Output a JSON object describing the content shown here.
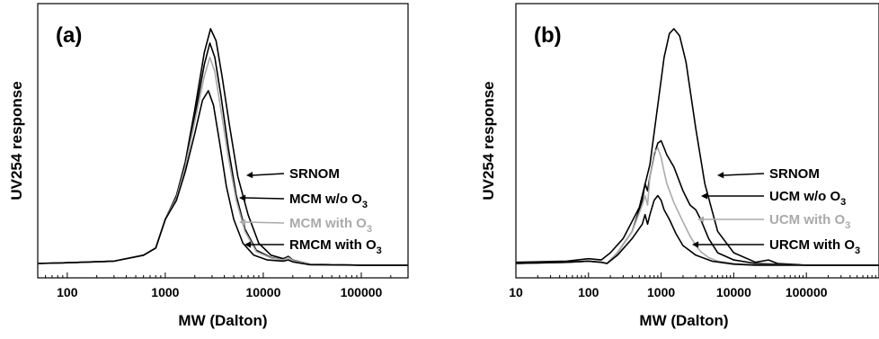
{
  "chart_data": [
    {
      "type": "line",
      "panel_label": "(a)",
      "xlabel": "MW (Dalton)",
      "ylabel": "UV254 response",
      "xscale": "log",
      "xlim": [
        50,
        300000
      ],
      "ylim": [
        0,
        1.05
      ],
      "yticks": "none",
      "xticks": [
        {
          "value": 100,
          "label": "100"
        },
        {
          "value": 1000,
          "label": "1000"
        },
        {
          "value": 10000,
          "label": "10000"
        },
        {
          "value": 100000,
          "label": "100000"
        }
      ],
      "series": [
        {
          "name": "SRNOM",
          "color": "#000000",
          "x": [
            50,
            100,
            300,
            600,
            800,
            1000,
            1300,
            1600,
            2000,
            2500,
            2900,
            3300,
            3800,
            4500,
            5500,
            7000,
            9000,
            12000,
            16000,
            18000,
            20000,
            30000,
            100000,
            300000
          ],
          "y": [
            0.015,
            0.018,
            0.025,
            0.05,
            0.08,
            0.2,
            0.3,
            0.44,
            0.66,
            0.9,
            1.0,
            0.95,
            0.8,
            0.6,
            0.38,
            0.22,
            0.1,
            0.05,
            0.035,
            0.045,
            0.03,
            0.012,
            0.008,
            0.008
          ]
        },
        {
          "name": "MCM w/o O3",
          "color": "#000000",
          "x": [
            50,
            100,
            300,
            600,
            800,
            1000,
            1300,
            1600,
            2000,
            2500,
            2850,
            3200,
            3700,
            4400,
            5300,
            6500,
            8500,
            12000,
            16000,
            18000,
            20000,
            30000,
            100000,
            300000
          ],
          "y": [
            0.015,
            0.018,
            0.025,
            0.05,
            0.08,
            0.2,
            0.29,
            0.43,
            0.63,
            0.85,
            0.94,
            0.88,
            0.72,
            0.5,
            0.3,
            0.16,
            0.07,
            0.04,
            0.03,
            0.04,
            0.028,
            0.012,
            0.008,
            0.008
          ]
        },
        {
          "name": "MCM with O3",
          "color": "#aaaaaa",
          "x": [
            50,
            100,
            300,
            600,
            800,
            1000,
            1300,
            1600,
            2000,
            2500,
            2850,
            3200,
            3700,
            4400,
            5300,
            6500,
            8500,
            12000,
            16000,
            18000,
            20000,
            30000,
            100000,
            300000
          ],
          "y": [
            0.015,
            0.018,
            0.025,
            0.05,
            0.08,
            0.2,
            0.29,
            0.42,
            0.61,
            0.8,
            0.88,
            0.82,
            0.66,
            0.46,
            0.28,
            0.15,
            0.065,
            0.038,
            0.03,
            0.04,
            0.028,
            0.012,
            0.008,
            0.008
          ]
        },
        {
          "name": "RMCM with O3",
          "color": "#000000",
          "x": [
            50,
            100,
            300,
            600,
            800,
            1000,
            1300,
            1600,
            2000,
            2400,
            2750,
            3100,
            3600,
            4200,
            5000,
            6200,
            8000,
            11000,
            16000,
            18000,
            20000,
            30000,
            100000,
            300000
          ],
          "y": [
            0.015,
            0.018,
            0.025,
            0.05,
            0.08,
            0.2,
            0.28,
            0.4,
            0.56,
            0.7,
            0.74,
            0.68,
            0.52,
            0.34,
            0.2,
            0.1,
            0.05,
            0.03,
            0.025,
            0.03,
            0.022,
            0.01,
            0.008,
            0.008
          ]
        }
      ],
      "annotations": [
        {
          "text": "SRNOM",
          "subscript": "",
          "color": "#000000"
        },
        {
          "text": "MCM w/o O",
          "subscript": "3",
          "color": "#000000"
        },
        {
          "text": "MCM with O",
          "subscript": "3",
          "color": "#aaaaaa"
        },
        {
          "text": "RMCM with O",
          "subscript": "3",
          "color": "#000000"
        }
      ]
    },
    {
      "type": "line",
      "panel_label": "(b)",
      "xlabel": "MW (Dalton)",
      "ylabel": "UV254 response",
      "xscale": "log",
      "xlim": [
        10,
        1000000
      ],
      "ylim": [
        0,
        1.05
      ],
      "yticks": "none",
      "xticks": [
        {
          "value": 10,
          "label": "10"
        },
        {
          "value": 100,
          "label": "100"
        },
        {
          "value": 1000,
          "label": "1000"
        },
        {
          "value": 10000,
          "label": "10000"
        },
        {
          "value": 100000,
          "label": "100000"
        }
      ],
      "series": [
        {
          "name": "SRNOM",
          "color": "#000000",
          "x": [
            10,
            50,
            100,
            150,
            200,
            300,
            500,
            700,
            900,
            1100,
            1300,
            1500,
            1800,
            2200,
            3000,
            4000,
            6000,
            10000,
            20000,
            30000,
            40000,
            100000,
            1000000
          ],
          "y": [
            0.02,
            0.025,
            0.035,
            0.03,
            0.06,
            0.12,
            0.25,
            0.43,
            0.68,
            0.88,
            0.98,
            1.0,
            0.97,
            0.86,
            0.58,
            0.35,
            0.15,
            0.06,
            0.02,
            0.03,
            0.015,
            0.008,
            0.008
          ]
        },
        {
          "name": "UCM w/o O3",
          "color": "#000000",
          "x": [
            10,
            50,
            100,
            150,
            180,
            250,
            400,
            550,
            600,
            650,
            700,
            800,
            900,
            1000,
            1100,
            1200,
            1500,
            2000,
            2500,
            3000,
            3500,
            4500,
            6000,
            10000,
            20000,
            100000,
            1000000
          ],
          "y": [
            0.015,
            0.02,
            0.025,
            0.02,
            0.015,
            0.06,
            0.15,
            0.28,
            0.35,
            0.32,
            0.38,
            0.47,
            0.52,
            0.53,
            0.5,
            0.47,
            0.42,
            0.32,
            0.26,
            0.24,
            0.2,
            0.12,
            0.06,
            0.03,
            0.015,
            0.008,
            0.008
          ]
        },
        {
          "name": "UCM with O3",
          "color": "#aaaaaa",
          "x": [
            10,
            50,
            100,
            150,
            180,
            250,
            400,
            550,
            600,
            650,
            700,
            800,
            900,
            1000,
            1100,
            1200,
            1500,
            2000,
            2500,
            3000,
            3500,
            4500,
            6000,
            10000,
            20000,
            100000,
            1000000
          ],
          "y": [
            0.015,
            0.02,
            0.025,
            0.02,
            0.015,
            0.06,
            0.15,
            0.26,
            0.3,
            0.26,
            0.38,
            0.48,
            0.5,
            0.46,
            0.4,
            0.35,
            0.27,
            0.19,
            0.13,
            0.09,
            0.065,
            0.04,
            0.025,
            0.015,
            0.01,
            0.008,
            0.008
          ]
        },
        {
          "name": "URCM with O3",
          "color": "#000000",
          "x": [
            10,
            50,
            100,
            150,
            180,
            250,
            400,
            550,
            600,
            650,
            700,
            800,
            900,
            1000,
            1100,
            1300,
            1600,
            2000,
            3000,
            5000,
            10000,
            20000,
            100000,
            1000000
          ],
          "y": [
            0.015,
            0.02,
            0.025,
            0.02,
            0.015,
            0.05,
            0.12,
            0.18,
            0.22,
            0.18,
            0.22,
            0.28,
            0.3,
            0.28,
            0.24,
            0.2,
            0.14,
            0.09,
            0.05,
            0.025,
            0.012,
            0.008,
            0.008,
            0.008
          ]
        }
      ],
      "annotations": [
        {
          "text": "SRNOM",
          "subscript": "",
          "color": "#000000"
        },
        {
          "text": "UCM w/o O",
          "subscript": "3",
          "color": "#000000"
        },
        {
          "text": "UCM with O",
          "subscript": "3",
          "color": "#aaaaaa"
        },
        {
          "text": "URCM with O",
          "subscript": "3",
          "color": "#000000"
        }
      ]
    }
  ]
}
